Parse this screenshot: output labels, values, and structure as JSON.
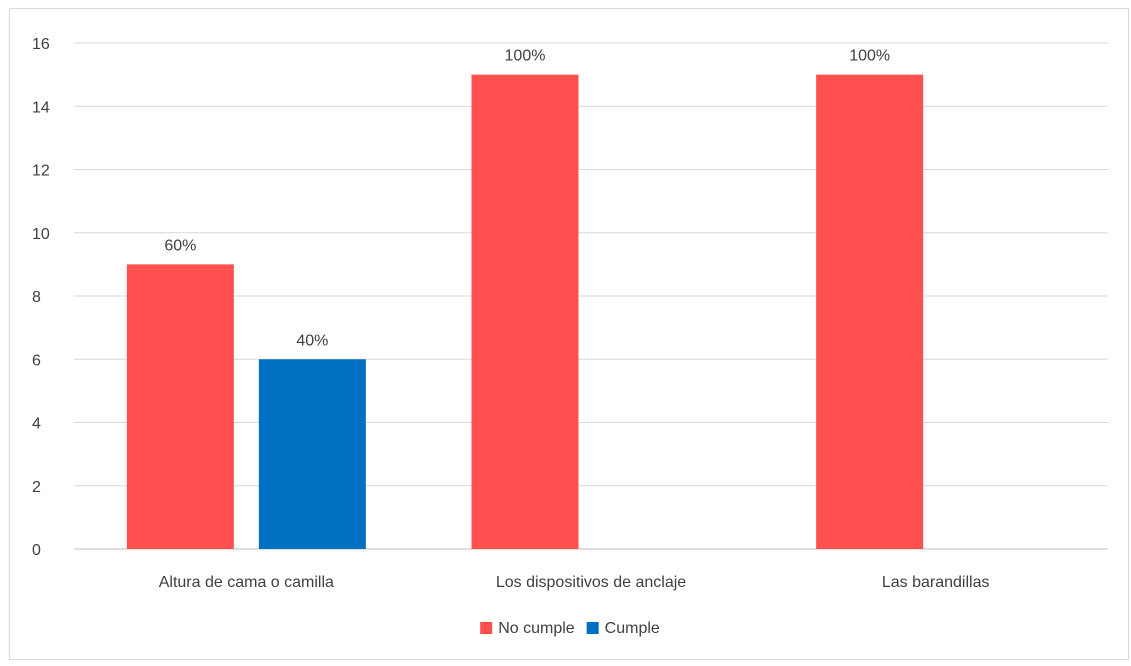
{
  "chart_data": {
    "type": "bar",
    "title": "",
    "xlabel": "",
    "ylabel": "",
    "categories": [
      "Altura de cama o camilla",
      "Los dispositivos de anclaje",
      "Las barandillas"
    ],
    "series": [
      {
        "name": "No cumple",
        "color": "#ff5050",
        "values": [
          9,
          15,
          15
        ],
        "labels": [
          "60%",
          "100%",
          "100%"
        ]
      },
      {
        "name": "Cumple",
        "color": "#0070c0",
        "values": [
          6,
          0,
          0
        ],
        "labels": [
          "40%",
          "",
          ""
        ]
      }
    ],
    "ylim": [
      0,
      16
    ],
    "yticks": [
      0,
      2,
      4,
      6,
      8,
      10,
      12,
      14,
      16
    ],
    "grid": true,
    "legend_position": "bottom"
  }
}
